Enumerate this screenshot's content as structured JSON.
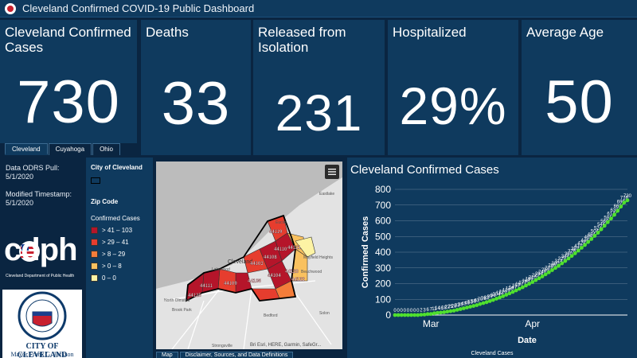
{
  "header": {
    "title": "Cleveland Confirmed COVID-19 Public Dashboard"
  },
  "indicators": [
    {
      "label": "Cleveland Confirmed Cases",
      "value": "730"
    },
    {
      "label": "Deaths",
      "value": "33"
    },
    {
      "label": "Released from Isolation",
      "value": "231"
    },
    {
      "label": "Hospitalized",
      "value": "29%"
    },
    {
      "label": "Average Age",
      "value": "50"
    }
  ],
  "tabs": [
    "Cleveland",
    "Cuyahoga",
    "Ohio"
  ],
  "info": {
    "odrs_label": "Data ODRS Pull:",
    "odrs_date": "5/1/2020",
    "modified_label": "Modified Timestamp:",
    "modified_date": "5/1/2020"
  },
  "cdph": {
    "wordmark": "cdph",
    "subtitle": "Cleveland Department of Public Health"
  },
  "city": {
    "name": "CITY OF CLEVELAND",
    "mayor": "Mayor Frank G. Jackson"
  },
  "legend": {
    "city_title": "City of Cleveland",
    "zip_title": "Zip Code",
    "cases_title": "Confirmed Cases",
    "classes": [
      {
        "label": "> 41 – 103",
        "color": "#b5152a"
      },
      {
        "label": "> 29 – 41",
        "color": "#e63d2e"
      },
      {
        "label": "> 8 – 29",
        "color": "#f47d3a"
      },
      {
        "label": "> 0 – 8",
        "color": "#f9c15f"
      },
      {
        "label": "0 – 0",
        "color": "#fdf3a4"
      }
    ]
  },
  "map": {
    "places": [
      "Eastlake",
      "Euclid",
      "Mayfield Heights",
      "Beachwood",
      "Lakewood",
      "North Olmsted",
      "Brook Park",
      "Bedford",
      "Solon",
      "Strongsville",
      "Cleveland"
    ],
    "zips": [
      "44119",
      "44110",
      "44108",
      "44121",
      "44103",
      "44104",
      "44120",
      "44122",
      "44111",
      "44109",
      "44105",
      "44125"
    ],
    "attribution": "Bri Esri, HERE, Garmin, SafeGr...",
    "tabs": [
      "Map",
      "Disclaimer, Sources, and Data Definitions"
    ]
  },
  "chart_data": {
    "type": "line",
    "title": "Cleveland Confirmed Cases",
    "xlabel": "Date",
    "ylabel": "Confirmed Cases",
    "ylim": [
      0,
      800
    ],
    "yticks": [
      0,
      100,
      200,
      300,
      400,
      500,
      600,
      700,
      800
    ],
    "xtick_labels": [
      {
        "label": "Mar",
        "index": 11
      },
      {
        "label": "Apr",
        "index": 42
      }
    ],
    "series": [
      {
        "values": [
          0,
          0,
          0,
          0,
          0,
          0,
          0,
          0,
          2,
          3,
          6,
          7,
          11,
          14,
          16,
          18,
          22,
          25,
          28,
          33,
          38,
          43,
          48,
          53,
          58,
          63,
          70,
          76,
          82,
          89,
          96,
          104,
          112,
          120,
          129,
          138,
          147,
          157,
          167,
          177,
          188,
          199,
          210,
          222,
          234,
          246,
          259,
          272,
          286,
          300,
          314,
          329,
          344,
          360,
          376,
          393,
          410,
          428,
          446,
          465,
          484,
          504,
          524,
          546,
          568,
          591,
          614,
          638,
          663,
          690,
          716,
          730
        ],
        "color": "#4fe02e"
      }
    ],
    "data_labels_visible": [
      "0",
      "0",
      "0",
      "0",
      "0",
      "0",
      "0",
      "0",
      "2",
      "3",
      "6",
      "7",
      "11",
      "14",
      "16",
      "18",
      "22",
      "25",
      "28",
      "33",
      "38",
      "43",
      "48",
      "53",
      "58",
      "63",
      "70",
      "76",
      "82",
      "89",
      "96",
      "104",
      "112",
      "120",
      "129",
      "138",
      "147",
      "157",
      "167",
      "177",
      "188",
      "199",
      "210",
      "222",
      "234",
      "246",
      "259",
      "272",
      "286",
      "300",
      "314",
      "329",
      "344",
      "360",
      "376",
      "393",
      "410",
      "428",
      "446",
      "465",
      "484",
      "504",
      "524",
      "546",
      "568",
      "591",
      "614",
      "638",
      "663",
      "690",
      "716",
      "730"
    ]
  },
  "chart_footer": "Cleveland Cases"
}
